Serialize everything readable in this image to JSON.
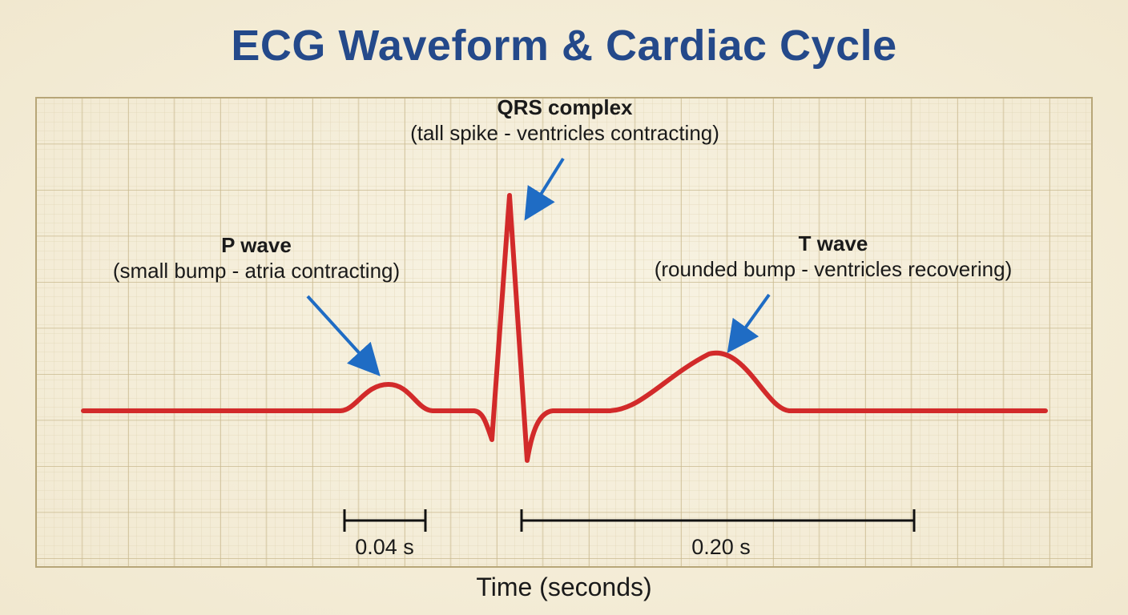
{
  "title": "ECG Waveform & Cardiac Cycle",
  "annotations": {
    "qrs": {
      "name": "QRS complex",
      "description": "(tall spike - ventricles contracting)"
    },
    "p": {
      "name": "P wave",
      "description": "(small bump - atria contracting)"
    },
    "t": {
      "name": "T wave",
      "description": "(rounded bump - ventricles recovering)"
    }
  },
  "durations": {
    "p_interval": "0.04 s",
    "t_interval": "0.20 s"
  },
  "x_axis_label": "Time (seconds)",
  "colors": {
    "title": "#24498a",
    "trace": "#d22a2a",
    "arrow": "#1f6cc4",
    "grid_major": "#c9b98f",
    "grid_minor": "#e2d7b8",
    "paper": "#f5efdc"
  }
}
